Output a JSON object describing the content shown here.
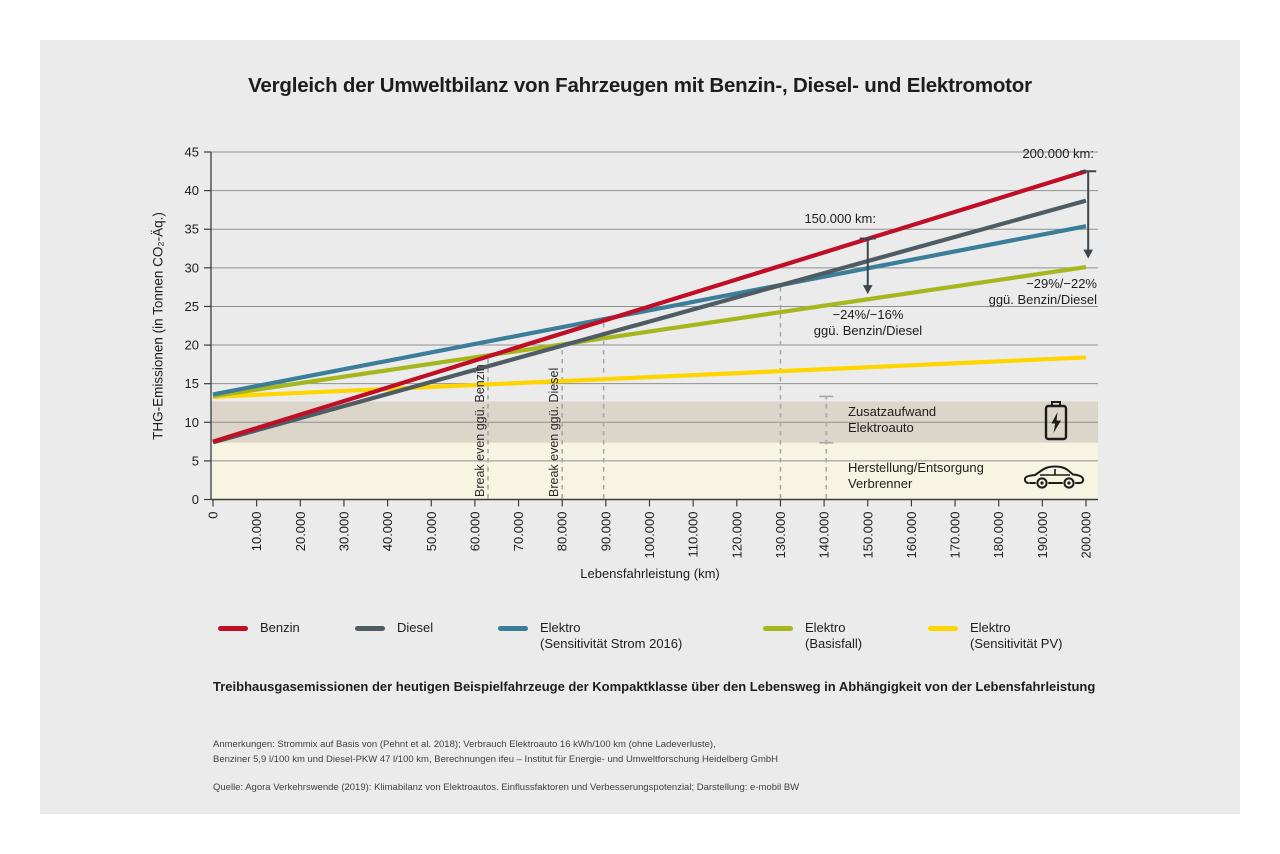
{
  "title": "Vergleich der Umweltbilanz von Fahrzeugen mit Benzin-, Diesel- und Elektromotor",
  "chart_data": {
    "type": "line",
    "xlabel": "Lebensfahrleistung (km)",
    "ylabel": "THG-Emissionen (in Tonnen CO₂-Äq.)",
    "xlim": [
      0,
      200000
    ],
    "ylim": [
      0,
      45
    ],
    "grid": "horizontal",
    "x_ticks": {
      "values": [
        0,
        10000,
        20000,
        30000,
        40000,
        50000,
        60000,
        70000,
        80000,
        90000,
        100000,
        110000,
        120000,
        130000,
        140000,
        150000,
        160000,
        170000,
        180000,
        190000,
        200000
      ],
      "labels": [
        "0",
        "10.000",
        "20.000",
        "30.000",
        "40.000",
        "50.000",
        "60.000",
        "70.000",
        "80.000",
        "90.000",
        "100.000",
        "110.000",
        "120.000",
        "130.000",
        "140.000",
        "150.000",
        "160.000",
        "170.000",
        "180.000",
        "190.000",
        "200.000"
      ]
    },
    "y_ticks": [
      0,
      5,
      10,
      15,
      20,
      25,
      30,
      35,
      40,
      45
    ],
    "series": [
      {
        "name": "Elektro (Sensitivität PV)",
        "color": "#ffd500",
        "x": [
          0,
          200000
        ],
        "y": [
          13.3,
          18.4
        ]
      },
      {
        "name": "Elektro (Basisfall)",
        "color": "#a6b71e",
        "x": [
          0,
          200000
        ],
        "y": [
          13.4,
          30.1
        ]
      },
      {
        "name": "Elektro (Sensitivität Strom 2016)",
        "color": "#3b7e99",
        "x": [
          0,
          200000
        ],
        "y": [
          13.6,
          35.4
        ]
      },
      {
        "name": "Diesel",
        "color": "#4f5c64",
        "x": [
          0,
          200000
        ],
        "y": [
          7.4,
          38.7
        ]
      },
      {
        "name": "Benzin",
        "color": "#c00e27",
        "x": [
          0,
          200000
        ],
        "y": [
          7.5,
          42.5
        ]
      }
    ],
    "bands": [
      {
        "label_line1": "Zusatzaufwand",
        "label_line2": "Elektroauto",
        "from": 7.35,
        "to": 12.7,
        "color": "#dcd6ca",
        "icon": "battery-icon"
      },
      {
        "label_line1": "Herstellung/Entsorgung",
        "label_line2": "Verbrenner",
        "from": 0,
        "to": 7.35,
        "color": "#f7f4e2",
        "icon": "car-icon"
      }
    ],
    "breakeven_lines": [
      {
        "x": 63000,
        "top": 18.8,
        "label": "Break even ggü. Benzin"
      },
      {
        "x": 80000,
        "top": 20.2,
        "label": "Break even ggü. Diesel"
      },
      {
        "x": 89500,
        "top": 23.1,
        "label": ""
      },
      {
        "x": 130000,
        "top": 27.8,
        "label": ""
      }
    ],
    "dimension_line": {
      "x": 140500,
      "caps": [
        13.35,
        7.35
      ]
    },
    "annotations": [
      {
        "x": 150000,
        "arrow_from": 33.8,
        "arrow_to": 26.6,
        "label": "150.000 km:",
        "note_line1": "−24%/−16%",
        "note_line2": "ggü. Benzin/Diesel"
      },
      {
        "x": 200500,
        "arrow_from": 42.5,
        "arrow_to": 31.2,
        "label": "200.000 km:",
        "note_line1": "−29%/−22%",
        "note_line2": "ggü. Benzin/Diesel"
      }
    ]
  },
  "legend": {
    "items": [
      {
        "line1": "Benzin",
        "line2": "",
        "color": "#c00e27"
      },
      {
        "line1": "Diesel",
        "line2": "",
        "color": "#4f5c64"
      },
      {
        "line1": "Elektro",
        "line2": "(Sensitivität Strom 2016)",
        "color": "#3b7e99"
      },
      {
        "line1": "Elektro",
        "line2": "(Basisfall)",
        "color": "#a6b71e"
      },
      {
        "line1": "Elektro",
        "line2": "(Sensitivität PV)",
        "color": "#ffd500"
      }
    ]
  },
  "caption": "Treibhausgasemissionen der heutigen Beispielfahrzeuge der Kompaktklasse über den Lebensweg in Abhängigkeit von der Lebensfahrleistung",
  "footnotes": {
    "line1": "Anmerkungen: Strommix auf Basis von (Pehnt et al. 2018); Verbrauch Elektroauto 16 kWh/100 km (ohne Ladeverluste),",
    "line2": "Benziner 5,9 l/100 km und Diesel-PKW 47 l/100 km, Berechnungen ifeu – Institut für Energie- und Umweltforschung Heidelberg GmbH",
    "source": "Quelle: Agora Verkehrswende (2019): Klimabilanz von Elektroautos. Einflussfaktoren und Verbesserungspotenzial; Darstellung: e-mobil BW"
  },
  "colors": {
    "panel_bg": "#ebebec",
    "gridline": "#919191",
    "axis": "#3c3c3c",
    "dashed_line": "#a7a7a3",
    "arrow": "#3d464c",
    "text": "#1d1d1b"
  }
}
